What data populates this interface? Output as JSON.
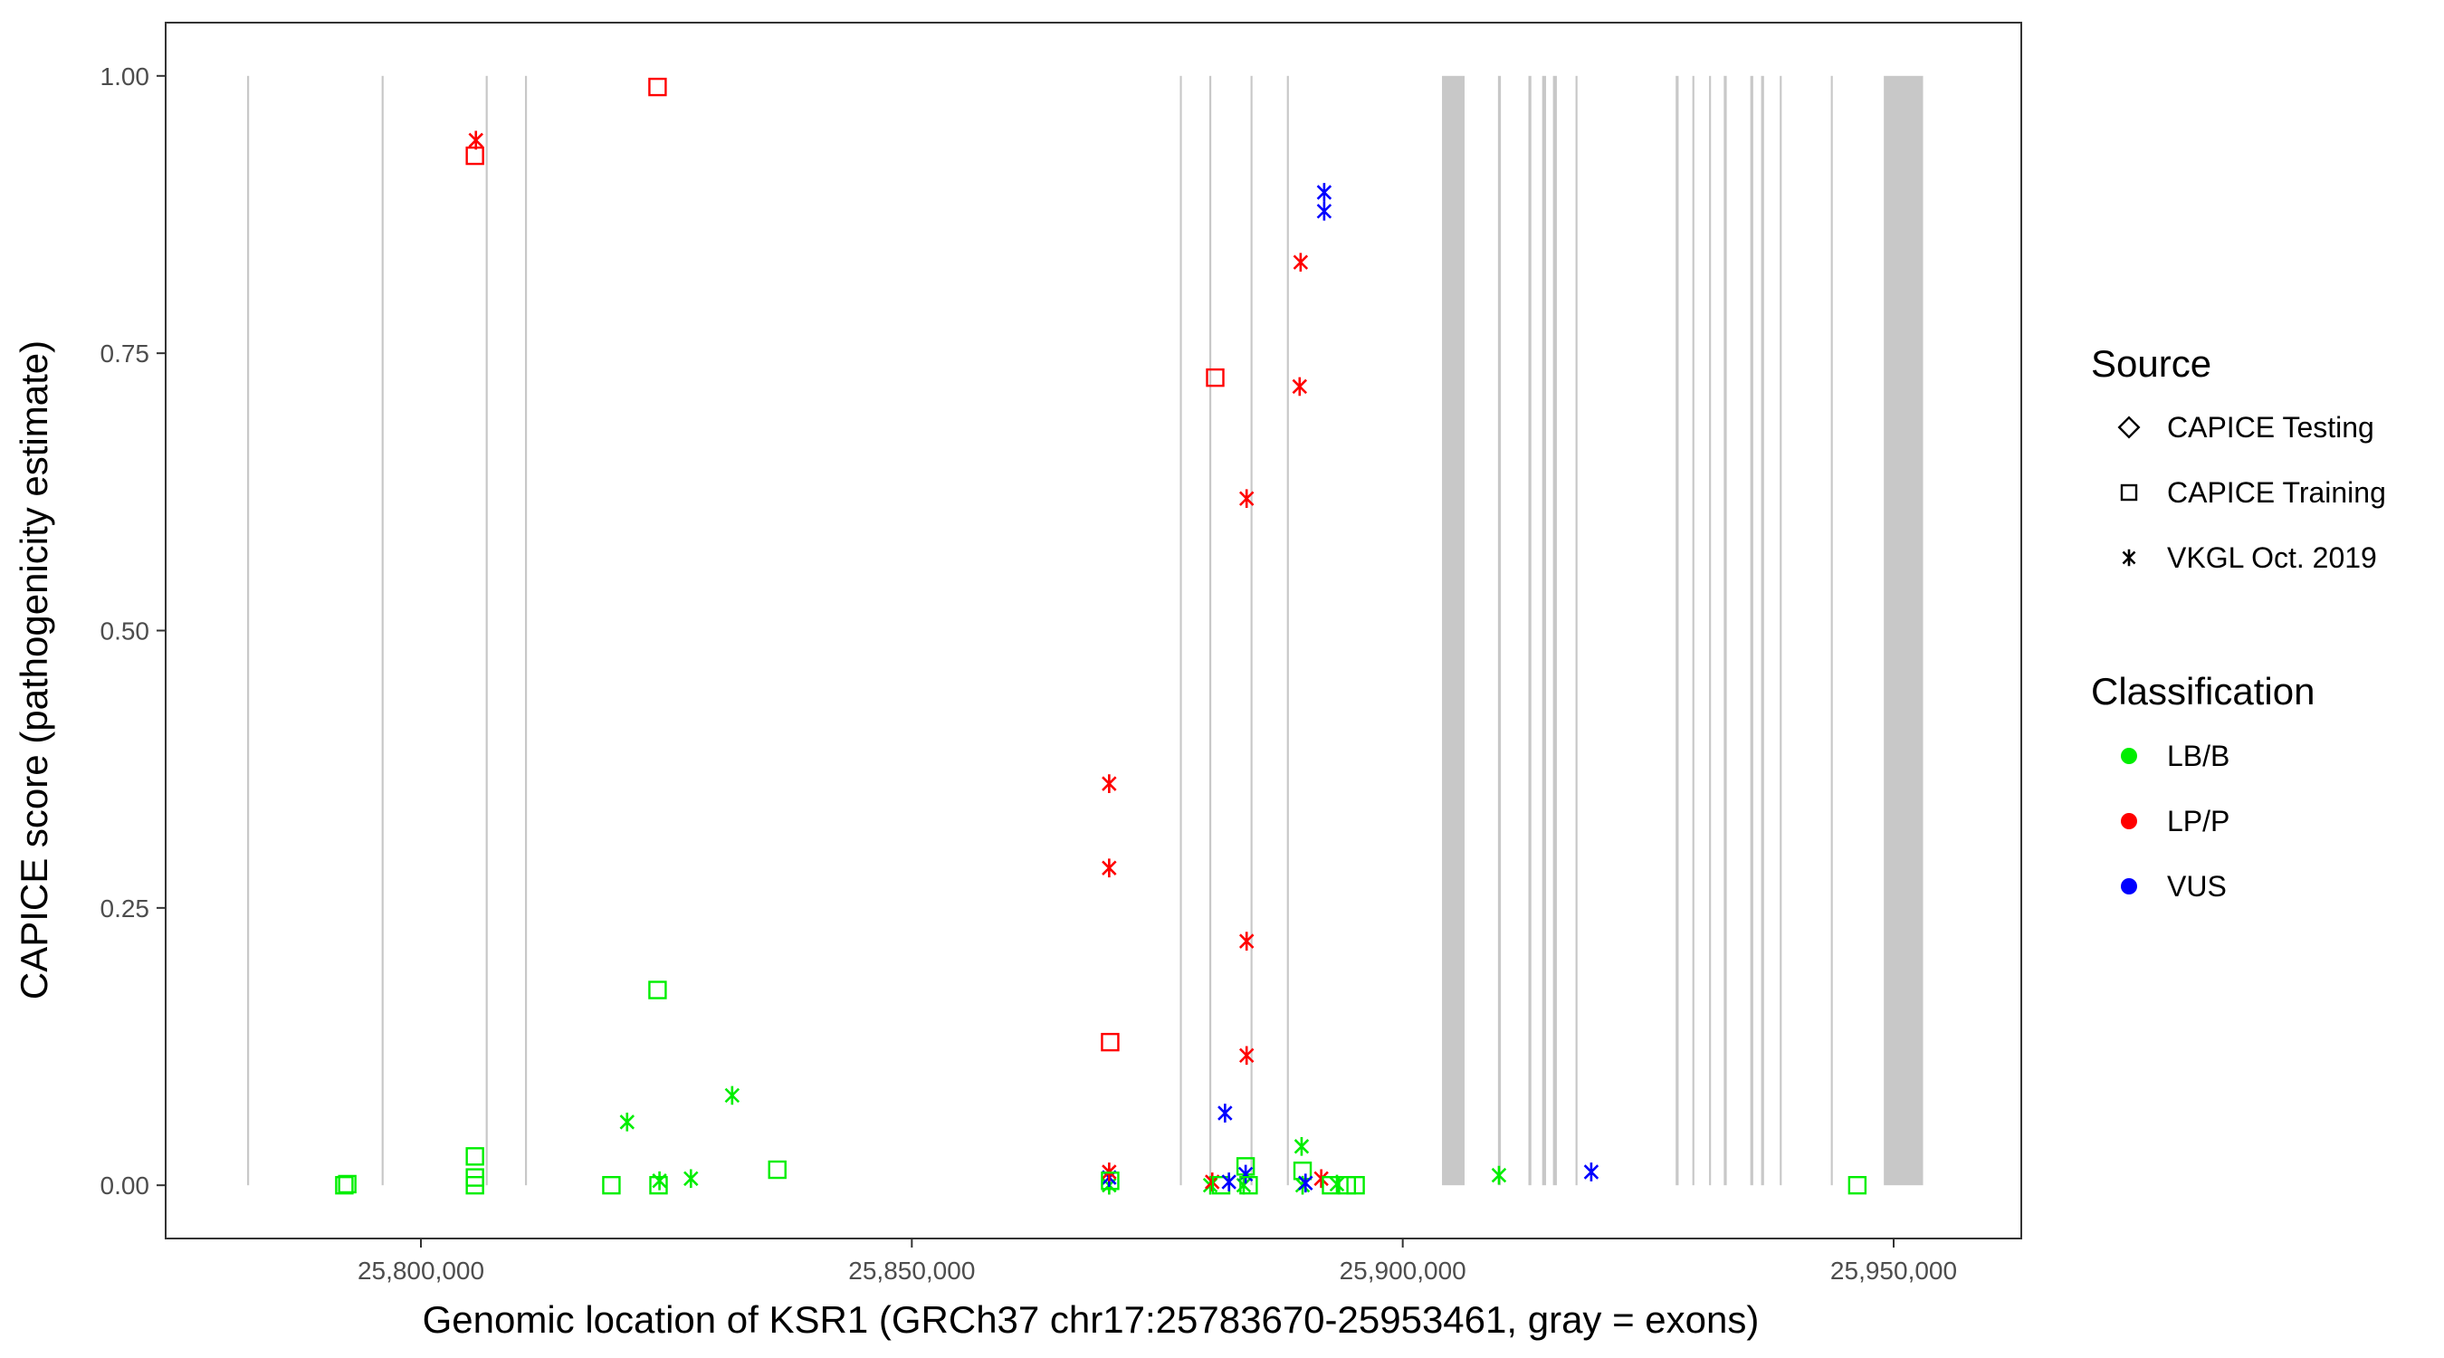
{
  "chart_data": {
    "type": "scatter",
    "title": "",
    "xlabel": "Genomic location of KSR1 (GRCh37 chr17:25783670-25953461, gray = exons)",
    "ylabel": "CAPICE score (pathogenicity estimate)",
    "xlim": [
      25774000,
      25963000
    ],
    "ylim": [
      -0.048,
      1.048
    ],
    "x_ticks": [
      25800000,
      25850000,
      25900000,
      25950000
    ],
    "x_tick_labels": [
      "25,800,000",
      "25,850,000",
      "25,900,000",
      "25,950,000"
    ],
    "y_ticks": [
      0,
      0.25,
      0.5,
      0.75,
      1.0
    ],
    "y_tick_labels": [
      "0.00",
      "0.25",
      "0.50",
      "0.75",
      "1.00"
    ],
    "grid": false,
    "exons": [
      [
        25782300,
        25782500
      ],
      [
        25796000,
        25796200
      ],
      [
        25806600,
        25806800
      ],
      [
        25810600,
        25810800
      ],
      [
        25877300,
        25877500
      ],
      [
        25880300,
        25880500
      ],
      [
        25884500,
        25884700
      ],
      [
        25888200,
        25888400
      ],
      [
        25904000,
        25906300
      ],
      [
        25909700,
        25910000
      ],
      [
        25912800,
        25913100
      ],
      [
        25914200,
        25914600
      ],
      [
        25915300,
        25915700
      ],
      [
        25917600,
        25917800
      ],
      [
        25927800,
        25928100
      ],
      [
        25929500,
        25929700
      ],
      [
        25931200,
        25931400
      ],
      [
        25932700,
        25933000
      ],
      [
        25935400,
        25935700
      ],
      [
        25936500,
        25936800
      ],
      [
        25938400,
        25938600
      ],
      [
        25943600,
        25943800
      ],
      [
        25949000,
        25953000
      ]
    ],
    "exon_color": "#c8c8c8",
    "source_shapes": {
      "CAPICE Testing": "diamond",
      "CAPICE Training": "square",
      "VKGL Oct. 2019": "asterisk"
    },
    "class_colors": {
      "LB/B": "#00ee00",
      "LP/P": "#ff0000",
      "VUS": "#0000ff"
    },
    "legend": {
      "position": "right",
      "source_title": "Source",
      "source_items": [
        {
          "label": "CAPICE Testing",
          "shape": "diamond"
        },
        {
          "label": "CAPICE Training",
          "shape": "square"
        },
        {
          "label": "VKGL Oct. 2019",
          "shape": "asterisk"
        }
      ],
      "class_title": "Classification",
      "class_items": [
        {
          "label": "LB/B",
          "color": "#00ee00"
        },
        {
          "label": "LP/P",
          "color": "#ff0000"
        },
        {
          "label": "VUS",
          "color": "#0000ff"
        }
      ]
    },
    "points": [
      {
        "x": 25792200,
        "y": 0.0,
        "source": "CAPICE Training",
        "cls": "LB/B"
      },
      {
        "x": 25792500,
        "y": 0.001,
        "source": "CAPICE Training",
        "cls": "LB/B"
      },
      {
        "x": 25805500,
        "y": 0.0,
        "source": "CAPICE Training",
        "cls": "LB/B"
      },
      {
        "x": 25805500,
        "y": 0.007,
        "source": "CAPICE Training",
        "cls": "LB/B"
      },
      {
        "x": 25805500,
        "y": 0.026,
        "source": "CAPICE Training",
        "cls": "LB/B"
      },
      {
        "x": 25805500,
        "y": 0.928,
        "source": "CAPICE Training",
        "cls": "LP/P"
      },
      {
        "x": 25805600,
        "y": 0.942,
        "source": "VKGL Oct. 2019",
        "cls": "LP/P"
      },
      {
        "x": 25819400,
        "y": 0.0,
        "source": "CAPICE Training",
        "cls": "LB/B"
      },
      {
        "x": 25821000,
        "y": 0.057,
        "source": "VKGL Oct. 2019",
        "cls": "LB/B"
      },
      {
        "x": 25824100,
        "y": 0.176,
        "source": "CAPICE Training",
        "cls": "LB/B"
      },
      {
        "x": 25824100,
        "y": 0.99,
        "source": "CAPICE Training",
        "cls": "LP/P"
      },
      {
        "x": 25824200,
        "y": 0.0,
        "source": "CAPICE Training",
        "cls": "LB/B"
      },
      {
        "x": 25824300,
        "y": 0.004,
        "source": "VKGL Oct. 2019",
        "cls": "LB/B"
      },
      {
        "x": 25827500,
        "y": 0.006,
        "source": "VKGL Oct. 2019",
        "cls": "LB/B"
      },
      {
        "x": 25831700,
        "y": 0.081,
        "source": "VKGL Oct. 2019",
        "cls": "LB/B"
      },
      {
        "x": 25836300,
        "y": 0.014,
        "source": "CAPICE Training",
        "cls": "LB/B"
      },
      {
        "x": 25870100,
        "y": 0.0,
        "source": "VKGL Oct. 2019",
        "cls": "LB/B"
      },
      {
        "x": 25870100,
        "y": 0.007,
        "source": "VKGL Oct. 2019",
        "cls": "VUS"
      },
      {
        "x": 25870100,
        "y": 0.012,
        "source": "VKGL Oct. 2019",
        "cls": "LP/P"
      },
      {
        "x": 25870100,
        "y": 0.286,
        "source": "VKGL Oct. 2019",
        "cls": "LP/P"
      },
      {
        "x": 25870100,
        "y": 0.362,
        "source": "VKGL Oct. 2019",
        "cls": "LP/P"
      },
      {
        "x": 25870200,
        "y": 0.129,
        "source": "CAPICE Training",
        "cls": "LP/P"
      },
      {
        "x": 25870200,
        "y": 0.004,
        "source": "CAPICE Training",
        "cls": "LB/B"
      },
      {
        "x": 25880400,
        "y": 0.0,
        "source": "VKGL Oct. 2019",
        "cls": "LB/B"
      },
      {
        "x": 25880600,
        "y": 0.003,
        "source": "VKGL Oct. 2019",
        "cls": "LP/P"
      },
      {
        "x": 25880900,
        "y": 0.728,
        "source": "CAPICE Training",
        "cls": "LP/P"
      },
      {
        "x": 25881500,
        "y": 0.0,
        "source": "CAPICE Training",
        "cls": "LB/B"
      },
      {
        "x": 25881900,
        "y": 0.065,
        "source": "VKGL Oct. 2019",
        "cls": "VUS"
      },
      {
        "x": 25882300,
        "y": 0.003,
        "source": "VKGL Oct. 2019",
        "cls": "VUS"
      },
      {
        "x": 25883800,
        "y": 0.0,
        "source": "VKGL Oct. 2019",
        "cls": "LB/B"
      },
      {
        "x": 25884000,
        "y": 0.017,
        "source": "CAPICE Training",
        "cls": "LB/B"
      },
      {
        "x": 25884000,
        "y": 0.01,
        "source": "VKGL Oct. 2019",
        "cls": "VUS"
      },
      {
        "x": 25884100,
        "y": 0.117,
        "source": "VKGL Oct. 2019",
        "cls": "LP/P"
      },
      {
        "x": 25884100,
        "y": 0.22,
        "source": "VKGL Oct. 2019",
        "cls": "LP/P"
      },
      {
        "x": 25884100,
        "y": 0.619,
        "source": "VKGL Oct. 2019",
        "cls": "LP/P"
      },
      {
        "x": 25884300,
        "y": 0.0,
        "source": "CAPICE Training",
        "cls": "LB/B"
      },
      {
        "x": 25889500,
        "y": 0.72,
        "source": "VKGL Oct. 2019",
        "cls": "LP/P"
      },
      {
        "x": 25889600,
        "y": 0.832,
        "source": "VKGL Oct. 2019",
        "cls": "LP/P"
      },
      {
        "x": 25889700,
        "y": 0.035,
        "source": "VKGL Oct. 2019",
        "cls": "LB/B"
      },
      {
        "x": 25889800,
        "y": 0.013,
        "source": "CAPICE Training",
        "cls": "LB/B"
      },
      {
        "x": 25889800,
        "y": 0.0,
        "source": "VKGL Oct. 2019",
        "cls": "LB/B"
      },
      {
        "x": 25890100,
        "y": 0.002,
        "source": "VKGL Oct. 2019",
        "cls": "VUS"
      },
      {
        "x": 25891700,
        "y": 0.006,
        "source": "VKGL Oct. 2019",
        "cls": "LP/P"
      },
      {
        "x": 25892000,
        "y": 0.878,
        "source": "VKGL Oct. 2019",
        "cls": "VUS"
      },
      {
        "x": 25892000,
        "y": 0.895,
        "source": "VKGL Oct. 2019",
        "cls": "VUS"
      },
      {
        "x": 25892700,
        "y": 0.0,
        "source": "CAPICE Training",
        "cls": "LB/B"
      },
      {
        "x": 25893300,
        "y": 0.001,
        "source": "VKGL Oct. 2019",
        "cls": "LB/B"
      },
      {
        "x": 25894300,
        "y": 0.0,
        "source": "CAPICE Training",
        "cls": "LB/B"
      },
      {
        "x": 25895200,
        "y": 0.0,
        "source": "CAPICE Training",
        "cls": "LB/B"
      },
      {
        "x": 25909800,
        "y": 0.009,
        "source": "VKGL Oct. 2019",
        "cls": "LB/B"
      },
      {
        "x": 25919200,
        "y": 0.012,
        "source": "VKGL Oct. 2019",
        "cls": "VUS"
      },
      {
        "x": 25946300,
        "y": 0.0,
        "source": "CAPICE Training",
        "cls": "LB/B"
      }
    ]
  }
}
